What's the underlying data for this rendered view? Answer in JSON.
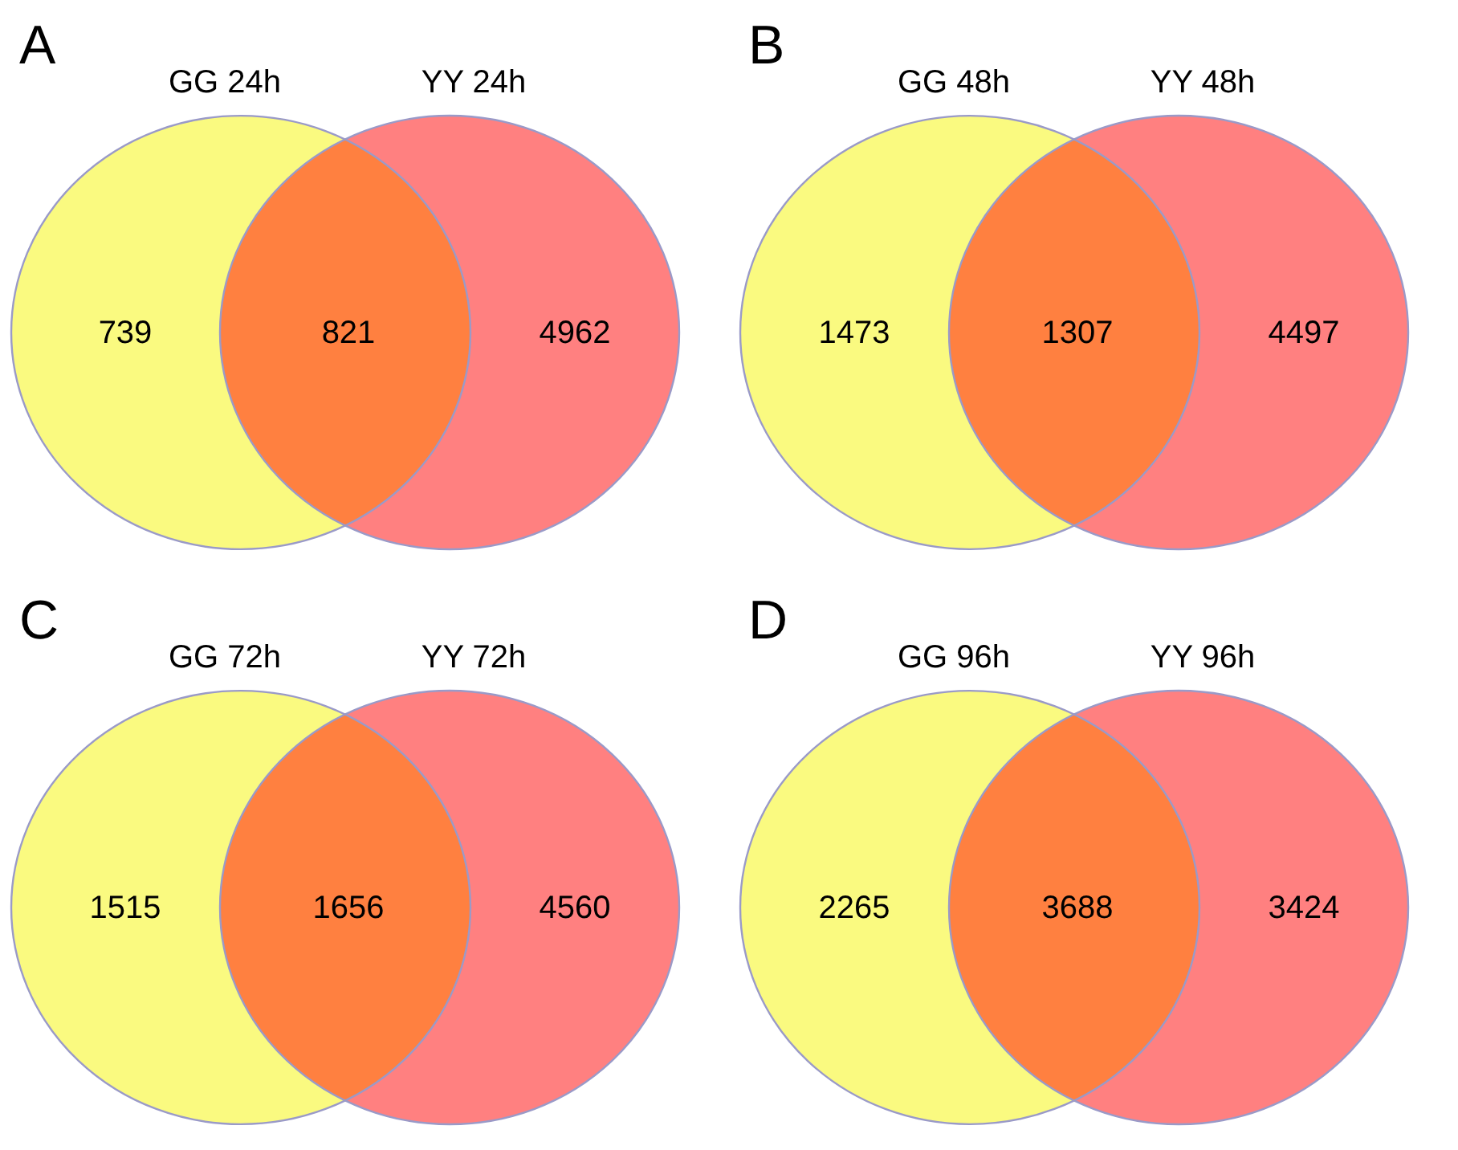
{
  "chart_data": [
    {
      "type": "other",
      "title": "A",
      "categories": [
        "GG 24h",
        null,
        "YY 24h"
      ],
      "values": [
        739,
        821,
        4962
      ],
      "colors": [
        "#fafa80",
        "#ff8040",
        "#ff8080"
      ],
      "data_labels": true
    },
    {
      "type": "other",
      "title": "B",
      "categories": [
        "GG 48h",
        null,
        "YY 48h"
      ],
      "values": [
        1473,
        1307,
        4497
      ],
      "colors": [
        "#fafa80",
        "#ff8040",
        "#ff8080"
      ],
      "data_labels": true
    },
    {
      "type": "other",
      "title": "C",
      "categories": [
        "GG 72h",
        null,
        "YY 72h"
      ],
      "values": [
        1515,
        1656,
        4560
      ],
      "colors": [
        "#fafa80",
        "#ff8040",
        "#ff8080"
      ],
      "data_labels": true
    },
    {
      "type": "other",
      "title": "D",
      "categories": [
        "GG 96h",
        null,
        "YY 96h"
      ],
      "values": [
        2265,
        3688,
        3424
      ],
      "colors": [
        "#fafa80",
        "#ff8040",
        "#ff8080"
      ],
      "data_labels": true
    }
  ]
}
